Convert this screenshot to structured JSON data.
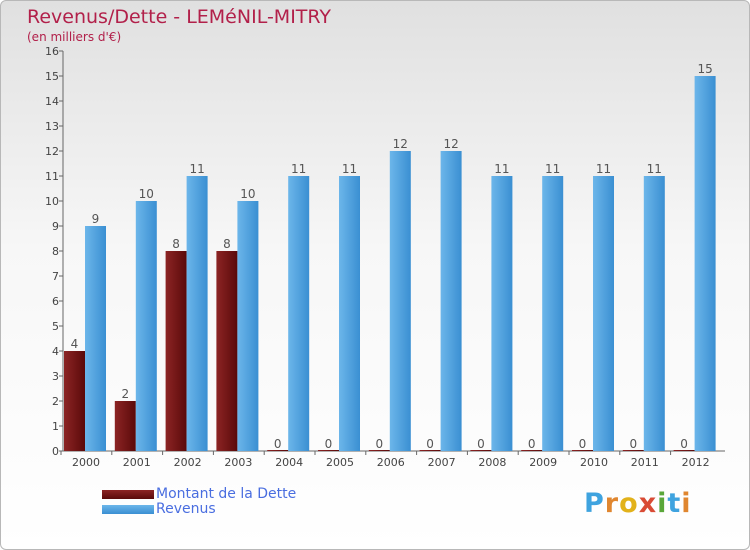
{
  "header": {
    "title": "Revenus/Dette - LEMéNIL-MITRY",
    "subtitle": "(en milliers d'€)"
  },
  "chart_data": {
    "type": "bar",
    "categories": [
      "2000",
      "2001",
      "2002",
      "2003",
      "2004",
      "2005",
      "2006",
      "2007",
      "2008",
      "2009",
      "2010",
      "2011",
      "2012"
    ],
    "series": [
      {
        "name": "Montant de la Dette",
        "color": "#7a1414",
        "values": [
          4,
          2,
          8,
          8,
          0,
          0,
          0,
          0,
          0,
          0,
          0,
          0,
          0
        ]
      },
      {
        "name": "Revenus",
        "color": "#4a9fe0",
        "values": [
          9,
          10,
          11,
          10,
          11,
          11,
          12,
          12,
          11,
          11,
          11,
          11,
          15
        ]
      }
    ],
    "yticks": [
      0,
      1,
      2,
      3,
      4,
      5,
      6,
      7,
      8,
      9,
      10,
      11,
      12,
      13,
      14,
      15,
      16
    ],
    "ylim": [
      0,
      16
    ],
    "grid": false,
    "legend_position": "bottom-left"
  },
  "logo": {
    "letters": [
      "P",
      "r",
      "o",
      "x",
      "i",
      "t",
      "i"
    ]
  }
}
